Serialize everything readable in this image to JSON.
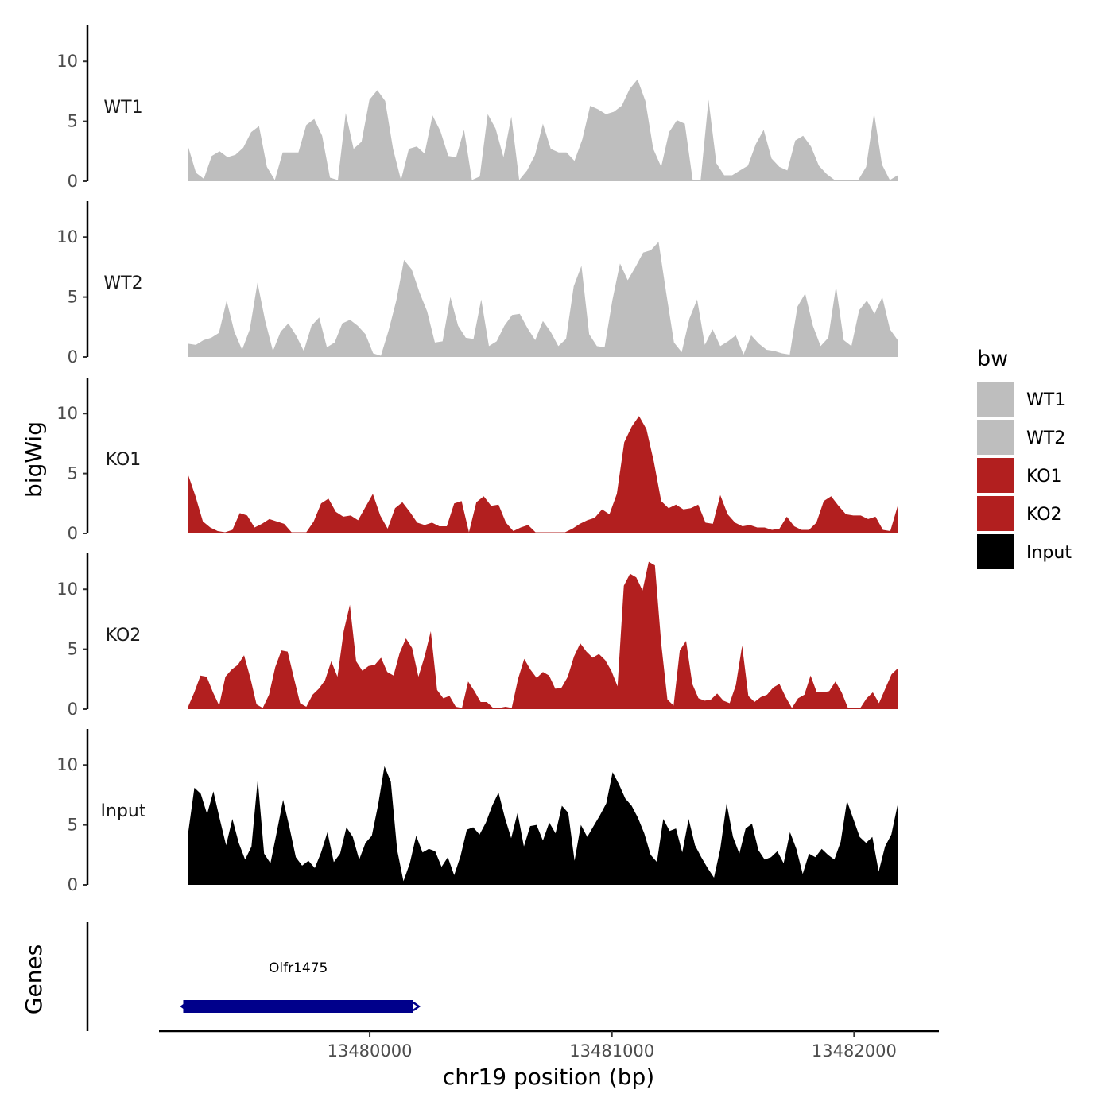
{
  "chart_data": {
    "type": "area",
    "chromosome": "chr19",
    "xlabel": "chr19 position (bp)",
    "ylabel": "bigWig",
    "genes_label": "Genes",
    "xlim": [
      13479130,
      13482350
    ],
    "x_range_data": [
      13479250,
      13482180
    ],
    "x_ticks": [
      13480000,
      13481000,
      13482000
    ],
    "x_tick_labels": [
      "13480000",
      "13481000",
      "13482000"
    ],
    "ylim": [
      0,
      13
    ],
    "y_ticks": [
      0,
      5,
      10
    ],
    "y_tick_labels": [
      "0",
      "5",
      "10"
    ],
    "legend": {
      "title": "bw",
      "position": "right",
      "entries": [
        {
          "label": "WT1",
          "color": "#bebebe"
        },
        {
          "label": "WT2",
          "color": "#bebebe"
        },
        {
          "label": "KO1",
          "color": "#b21f1f"
        },
        {
          "label": "KO2",
          "color": "#b21f1f"
        },
        {
          "label": "Input",
          "color": "#000000"
        }
      ]
    },
    "series": [
      {
        "name": "WT1",
        "color": "#bebebe",
        "values": [
          2.9,
          0.7,
          0.2,
          2.1,
          2.5,
          2.0,
          2.2,
          2.8,
          4.1,
          4.6,
          1.2,
          0.1,
          2.4,
          2.4,
          2.4,
          4.7,
          5.2,
          3.8,
          0.3,
          0.1,
          5.7,
          2.7,
          3.3,
          6.8,
          7.6,
          6.7,
          2.7,
          0.1,
          2.7,
          2.9,
          2.3,
          5.5,
          4.2,
          2.1,
          2.0,
          4.3,
          0.1,
          0.4,
          5.6,
          4.4,
          2.0,
          5.4,
          0.1,
          0.9,
          2.2,
          4.8,
          2.7,
          2.4,
          2.4,
          1.7,
          3.5,
          6.3,
          6.0,
          5.6,
          5.8,
          6.3,
          7.7,
          8.5,
          6.7,
          2.7,
          1.2,
          4.1,
          5.1,
          4.8,
          0.1,
          0.1,
          6.8,
          1.5,
          0.5,
          0.5,
          0.9,
          1.3,
          3.1,
          4.3,
          1.9,
          1.2,
          0.9,
          3.4,
          3.8,
          2.9,
          1.3,
          0.6,
          0.1,
          0.1,
          0.1,
          0.1,
          1.2,
          5.7,
          1.4,
          0.1,
          0.5
        ]
      },
      {
        "name": "WT2",
        "color": "#bebebe",
        "values": [
          1.1,
          1.0,
          1.4,
          1.6,
          2.0,
          4.7,
          2.1,
          0.6,
          2.3,
          6.2,
          3.0,
          0.5,
          2.1,
          2.8,
          1.8,
          0.5,
          2.6,
          3.3,
          0.8,
          1.2,
          2.8,
          3.1,
          2.6,
          1.9,
          0.3,
          0.1,
          2.2,
          4.7,
          8.1,
          7.3,
          5.4,
          3.8,
          1.2,
          1.3,
          5.0,
          2.6,
          1.6,
          1.5,
          4.8,
          0.9,
          1.3,
          2.6,
          3.5,
          3.6,
          2.4,
          1.4,
          3.0,
          2.1,
          0.9,
          1.5,
          5.9,
          7.6,
          1.9,
          0.9,
          0.8,
          4.7,
          7.8,
          6.4,
          7.5,
          8.7,
          8.9,
          9.6,
          5.3,
          1.2,
          0.4,
          3.2,
          4.8,
          1.0,
          2.3,
          0.9,
          1.3,
          1.8,
          0.2,
          1.8,
          1.1,
          0.6,
          0.5,
          0.3,
          0.2,
          4.2,
          5.3,
          2.6,
          0.9,
          1.6,
          5.9,
          1.4,
          0.9,
          3.9,
          4.7,
          3.6,
          5.0,
          2.3,
          1.4
        ]
      },
      {
        "name": "KO1",
        "color": "#b21f1f",
        "values": [
          4.9,
          3.1,
          1.0,
          0.5,
          0.2,
          0.1,
          0.3,
          1.7,
          1.5,
          0.5,
          0.8,
          1.2,
          1.0,
          0.8,
          0.1,
          0.1,
          0.1,
          1.0,
          2.5,
          2.9,
          1.8,
          1.4,
          1.5,
          1.1,
          2.2,
          3.3,
          1.5,
          0.4,
          2.1,
          2.6,
          1.8,
          0.9,
          0.7,
          0.9,
          0.6,
          0.6,
          2.5,
          2.7,
          0.1,
          2.6,
          3.1,
          2.3,
          2.4,
          0.9,
          0.2,
          0.5,
          0.7,
          0.1,
          0.1,
          0.1,
          0.1,
          0.1,
          0.4,
          0.8,
          1.1,
          1.3,
          2.0,
          1.6,
          3.3,
          7.6,
          8.9,
          9.8,
          8.7,
          6.0,
          2.7,
          2.1,
          2.4,
          2.0,
          2.1,
          2.4,
          0.9,
          0.8,
          3.2,
          1.6,
          0.9,
          0.6,
          0.7,
          0.5,
          0.5,
          0.3,
          0.4,
          1.4,
          0.6,
          0.3,
          0.3,
          0.9,
          2.7,
          3.1,
          2.3,
          1.6,
          1.5,
          1.5,
          1.2,
          1.4,
          0.3,
          0.2,
          2.3
        ]
      },
      {
        "name": "KO2",
        "color": "#b21f1f",
        "values": [
          0.2,
          1.4,
          2.8,
          2.7,
          1.4,
          0.3,
          2.7,
          3.3,
          3.7,
          4.5,
          2.6,
          0.4,
          0.1,
          1.2,
          3.5,
          4.9,
          4.8,
          2.6,
          0.5,
          0.2,
          1.2,
          1.7,
          2.4,
          4.0,
          2.7,
          6.5,
          8.7,
          4.0,
          3.2,
          3.6,
          3.7,
          4.3,
          3.1,
          2.8,
          4.7,
          5.9,
          5.1,
          2.7,
          4.4,
          6.5,
          1.6,
          0.9,
          1.1,
          0.2,
          0.1,
          2.3,
          1.5,
          0.6,
          0.6,
          0.1,
          0.1,
          0.2,
          0.1,
          2.5,
          4.2,
          3.3,
          2.6,
          3.1,
          2.8,
          1.7,
          1.8,
          2.7,
          4.4,
          5.5,
          4.8,
          4.3,
          4.6,
          4.1,
          3.2,
          1.9,
          10.3,
          11.3,
          11.0,
          9.9,
          12.3,
          12.0,
          5.5,
          0.8,
          0.3,
          4.9,
          5.7,
          2.1,
          0.9,
          0.7,
          0.8,
          1.3,
          0.7,
          0.5,
          2.0,
          5.3,
          1.1,
          0.6,
          1.0,
          1.2,
          1.8,
          2.1,
          1.0,
          0.1,
          0.9,
          1.2,
          2.8,
          1.4,
          1.4,
          1.5,
          2.3,
          1.4,
          0.1,
          0.1,
          0.1,
          0.9,
          1.4,
          0.5,
          1.7,
          2.9,
          3.4
        ]
      },
      {
        "name": "Input",
        "color": "#000000",
        "values": [
          4.3,
          8.1,
          7.6,
          5.9,
          7.8,
          5.5,
          3.3,
          5.5,
          3.5,
          2.1,
          3.2,
          8.8,
          2.6,
          1.8,
          4.4,
          7.1,
          4.8,
          2.3,
          1.6,
          2.0,
          1.4,
          2.7,
          4.4,
          1.9,
          2.6,
          4.8,
          4.0,
          2.1,
          3.5,
          4.1,
          6.7,
          9.9,
          8.6,
          2.9,
          0.3,
          1.8,
          4.1,
          2.7,
          3.0,
          2.8,
          1.5,
          2.3,
          0.8,
          2.4,
          4.6,
          4.8,
          4.2,
          5.2,
          6.6,
          7.7,
          5.6,
          3.9,
          6.0,
          3.2,
          4.9,
          5.0,
          3.7,
          5.2,
          4.3,
          6.6,
          6.0,
          2.0,
          5.0,
          4.0,
          4.9,
          5.8,
          6.8,
          9.4,
          8.4,
          7.2,
          6.6,
          5.6,
          4.3,
          2.5,
          1.9,
          5.5,
          4.5,
          4.7,
          2.7,
          5.5,
          3.3,
          2.3,
          1.4,
          0.6,
          3.0,
          6.8,
          4.0,
          2.6,
          4.7,
          5.1,
          2.9,
          2.1,
          2.3,
          2.8,
          1.8,
          4.4,
          3.0,
          0.9,
          2.6,
          2.3,
          3.0,
          2.5,
          2.1,
          3.6,
          7.0,
          5.5,
          4.0,
          3.5,
          4.0,
          1.1,
          3.2,
          4.2,
          6.7
        ]
      }
    ],
    "genes": [
      {
        "name": "Olfr1475",
        "start": 13479230,
        "end": 13480180,
        "strand": "+",
        "color": "#00008b"
      }
    ]
  }
}
